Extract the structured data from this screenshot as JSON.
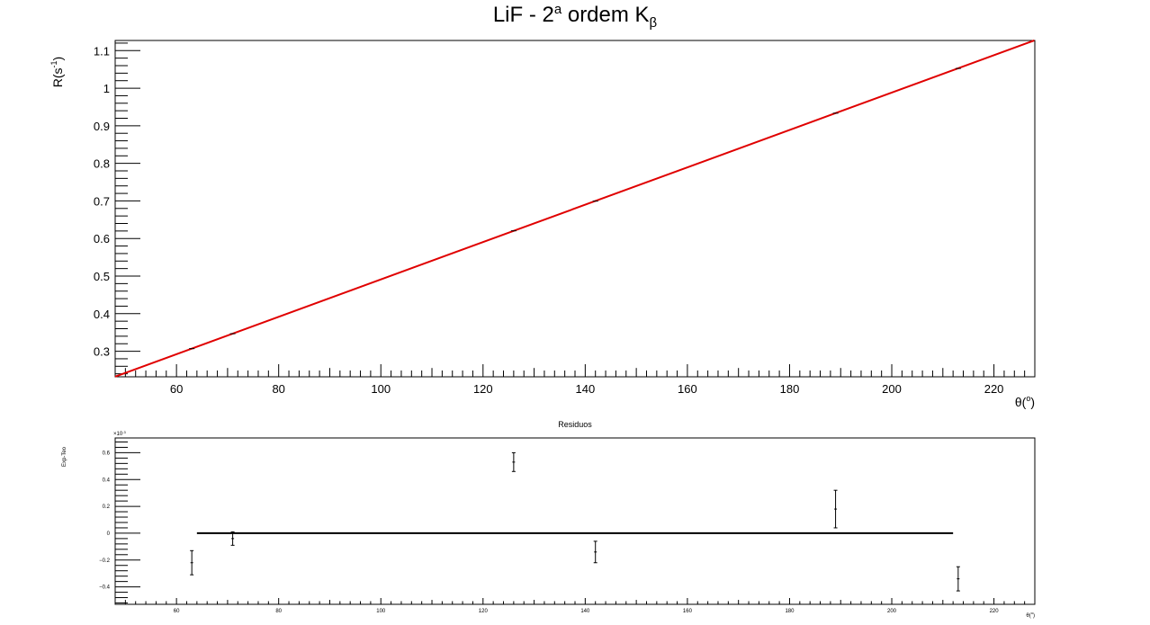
{
  "canvas": {
    "background": "#ffffff"
  },
  "chart_data": [
    {
      "name": "main",
      "type": "line",
      "title": "LiF - 2ª ordem Kβ",
      "title_parts": {
        "base": "LiF - 2",
        "sup": "a",
        "mid": " ordem K",
        "sub": "β"
      },
      "xlabel": "θ(°)",
      "xlabel_parts": {
        "base": "θ(",
        "sup": "o",
        "end": ")"
      },
      "ylabel": "R(s⁻¹)",
      "ylabel_parts": {
        "base": "R(s",
        "sup": "-1",
        "end": ")"
      },
      "xlim": [
        48,
        228
      ],
      "ylim": [
        0.232,
        1.127
      ],
      "x_ticks": [
        60,
        80,
        100,
        120,
        140,
        160,
        180,
        200,
        220
      ],
      "y_ticks": [
        0.3,
        0.4,
        0.5,
        0.6,
        0.7,
        0.8,
        0.9,
        1,
        1.1
      ],
      "grid": false,
      "fit_line": {
        "color": "#e00000",
        "slope": 0.004973,
        "intercept": -0.00625,
        "x_range": [
          48,
          228
        ]
      },
      "points": {
        "color": "#000000",
        "x": [
          63,
          71,
          126,
          142,
          189,
          213
        ],
        "y": [
          0.307,
          0.3467,
          0.6205,
          0.6995,
          0.9335,
          1.0525
        ]
      }
    },
    {
      "name": "residuals",
      "type": "scatter",
      "title": "Residuos",
      "xlabel": "θ(°)",
      "xlabel_parts": {
        "base": "θ(",
        "sup": "o",
        "end": ")"
      },
      "ylabel": "Exp-Teo",
      "y_scale_label": "×10⁻³",
      "y_scale_parts": {
        "base": "×10",
        "sup": "-3"
      },
      "xlim": [
        48,
        228
      ],
      "ylim": [
        -0.53,
        0.71
      ],
      "x_ticks": [
        60,
        80,
        100,
        120,
        140,
        160,
        180,
        200,
        220
      ],
      "y_ticks": [
        -0.4,
        -0.2,
        0,
        0.2,
        0.4,
        0.6
      ],
      "y_tick_labels": [
        "−0.4",
        "−0.2",
        "0",
        "0.2",
        "0.4",
        "0.6"
      ],
      "grid": false,
      "zero_line": {
        "color": "#000000",
        "x_range": [
          64,
          212
        ],
        "y": 0
      },
      "points": {
        "color": "#000000",
        "x": [
          63,
          71,
          126,
          142,
          189,
          213
        ],
        "y": [
          -0.22,
          -0.04,
          0.53,
          -0.14,
          0.18,
          -0.34
        ],
        "err": [
          0.09,
          0.05,
          0.07,
          0.08,
          0.14,
          0.09
        ]
      }
    }
  ]
}
